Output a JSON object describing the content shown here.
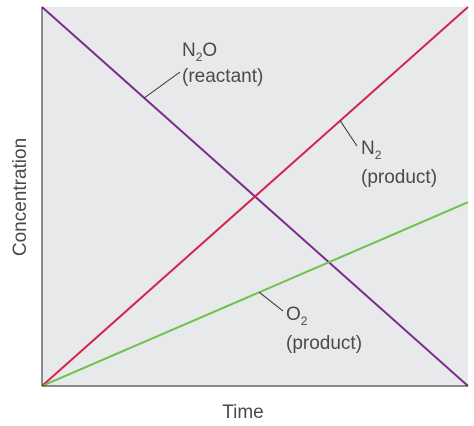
{
  "chart_data": {
    "type": "line",
    "xlabel": "Time",
    "ylabel": "Concentration",
    "xlim": [
      0,
      1
    ],
    "ylim": [
      0,
      1
    ],
    "grid": false,
    "legend": "none",
    "background": "#e8e9eb",
    "series": [
      {
        "key": "n2o",
        "color": "#7b2a8e",
        "x": [
          0,
          1
        ],
        "y": [
          1,
          0
        ]
      },
      {
        "key": "n2",
        "color": "#d4234a",
        "x": [
          0,
          1
        ],
        "y": [
          0,
          1
        ]
      },
      {
        "key": "o2",
        "color": "#6cc24a",
        "x": [
          0,
          1
        ],
        "y": [
          0,
          0.485
        ]
      }
    ],
    "annotations": [
      {
        "series": "n2o",
        "species": {
          "base": "N",
          "sub": "2",
          "tail": "O"
        },
        "role": "(reactant)"
      },
      {
        "series": "n2",
        "species": {
          "base": "N",
          "sub": "2",
          "tail": ""
        },
        "role": "(product)"
      },
      {
        "series": "o2",
        "species": {
          "base": "O",
          "sub": "2",
          "tail": ""
        },
        "role": "(product)"
      }
    ]
  }
}
